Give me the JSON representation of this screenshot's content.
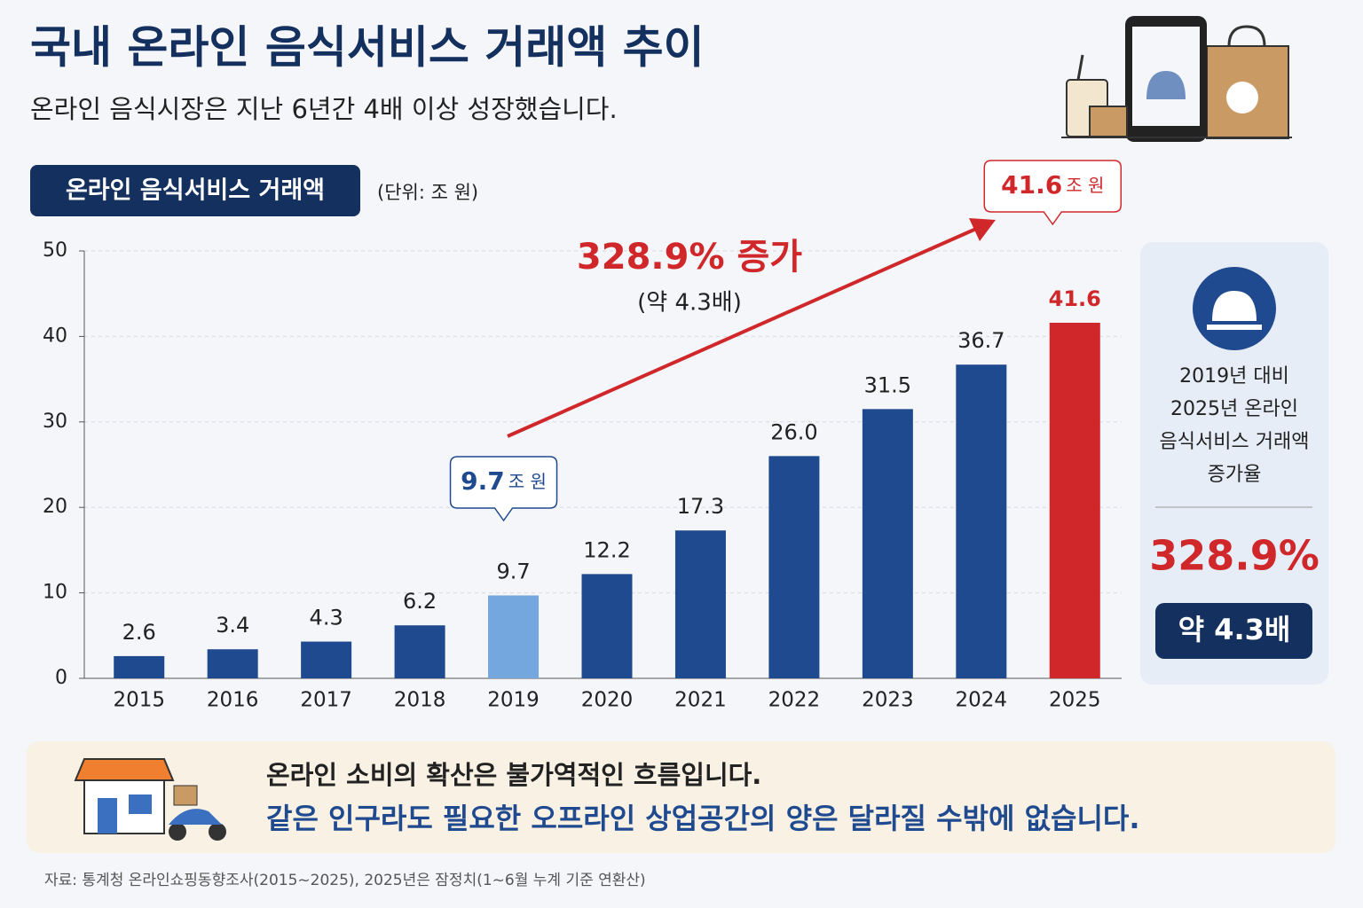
{
  "header": {
    "title": "국내 온라인 음식서비스 거래액 추이",
    "subtitle": "온라인 음식시장은 지난 6년간 4배 이상 성장했습니다."
  },
  "chart_data": {
    "type": "bar",
    "title": "온라인 음식서비스 거래액",
    "unit_label": "(단위: 조 원)",
    "categories": [
      "2015",
      "2016",
      "2017",
      "2018",
      "2019",
      "2020",
      "2021",
      "2022",
      "2023",
      "2024",
      "2025"
    ],
    "values": [
      2.6,
      3.4,
      4.3,
      6.2,
      9.7,
      12.2,
      17.3,
      26.0,
      31.5,
      36.7,
      41.6
    ],
    "value_labels": [
      "2.6",
      "3.4",
      "4.3",
      "6.2",
      "9.7",
      "12.2",
      "17.3",
      "26.0",
      "31.5",
      "36.7",
      "41.6"
    ],
    "colors": [
      "#1f4a8f",
      "#1f4a8f",
      "#1f4a8f",
      "#1f4a8f",
      "#74a7de",
      "#1f4a8f",
      "#1f4a8f",
      "#1f4a8f",
      "#1f4a8f",
      "#1f4a8f",
      "#d0282a"
    ],
    "ylim": [
      0,
      50
    ],
    "yticks": [
      0,
      10,
      20,
      30,
      40,
      50
    ],
    "grid": true,
    "annotations": {
      "growth": "328.9% 증가",
      "ratio": "(약 4.3배)",
      "start_callout": {
        "amount": "9.7",
        "unit": "조 원"
      },
      "end_callout": {
        "amount": "41.6",
        "unit": "조 원"
      }
    }
  },
  "side_panel": {
    "caption_lines": [
      "2019년 대비",
      "2025년 온라인",
      "음식서비스 거래액",
      "증가율"
    ],
    "rate": "328.9%",
    "multiple": "약 4.3배"
  },
  "banner": {
    "line1": "온라인 소비의 확산은 불가역적인 흐름입니다.",
    "line2": "같은 인구라도 필요한 오프라인 상업공간의 양은 달라질 수밖에 없습니다."
  },
  "source": "자료: 통계청 온라인쇼핑동향조사(2015~2025), 2025년은 잠정치(1~6월 누계 기준 연환산)"
}
